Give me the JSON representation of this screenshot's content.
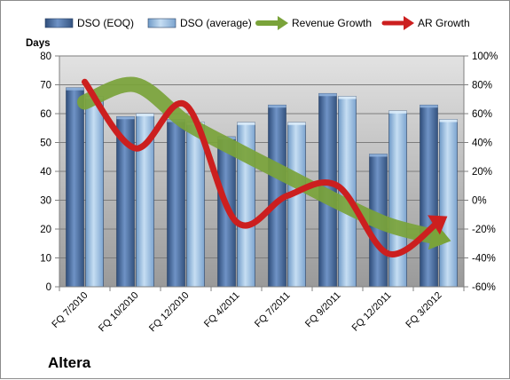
{
  "chart_data": {
    "type": "bar",
    "company": "Altera",
    "y_axis_label": "Days",
    "categories": [
      "FQ 7/2010",
      "FQ 10/2010",
      "FQ 12/2010",
      "FQ 4/2011",
      "FQ 7/2011",
      "FQ 9/2011",
      "FQ 12/2011",
      "FQ 3/2012"
    ],
    "ylim": [
      0,
      80
    ],
    "yticks": [
      0,
      10,
      20,
      30,
      40,
      50,
      60,
      70,
      80
    ],
    "y2lim": [
      -60,
      100
    ],
    "y2ticks": [
      "-60%",
      "-40%",
      "-20%",
      "0%",
      "20%",
      "40%",
      "60%",
      "80%",
      "100%"
    ],
    "grid": true,
    "legend_position": "top",
    "bar_series": [
      {
        "name": "DSO (EOQ)",
        "axis": "left",
        "color": "#4a6fa5",
        "values": [
          69,
          59,
          58,
          52,
          63,
          67,
          46,
          63
        ]
      },
      {
        "name": "DSO (average)",
        "axis": "left",
        "color": "#9dc3e6",
        "values": [
          66,
          60,
          57,
          57,
          57,
          66,
          61,
          58
        ]
      }
    ],
    "line_series": [
      {
        "name": "Revenue Growth",
        "axis": "right",
        "color": "#7aa33a",
        "values": [
          68,
          80,
          54,
          35,
          17,
          -1,
          -17,
          -26
        ]
      },
      {
        "name": "AR Growth",
        "axis": "right",
        "color": "#cc1f1f",
        "values": [
          82,
          36,
          66,
          -15,
          3,
          10,
          -37,
          -15
        ]
      }
    ]
  }
}
